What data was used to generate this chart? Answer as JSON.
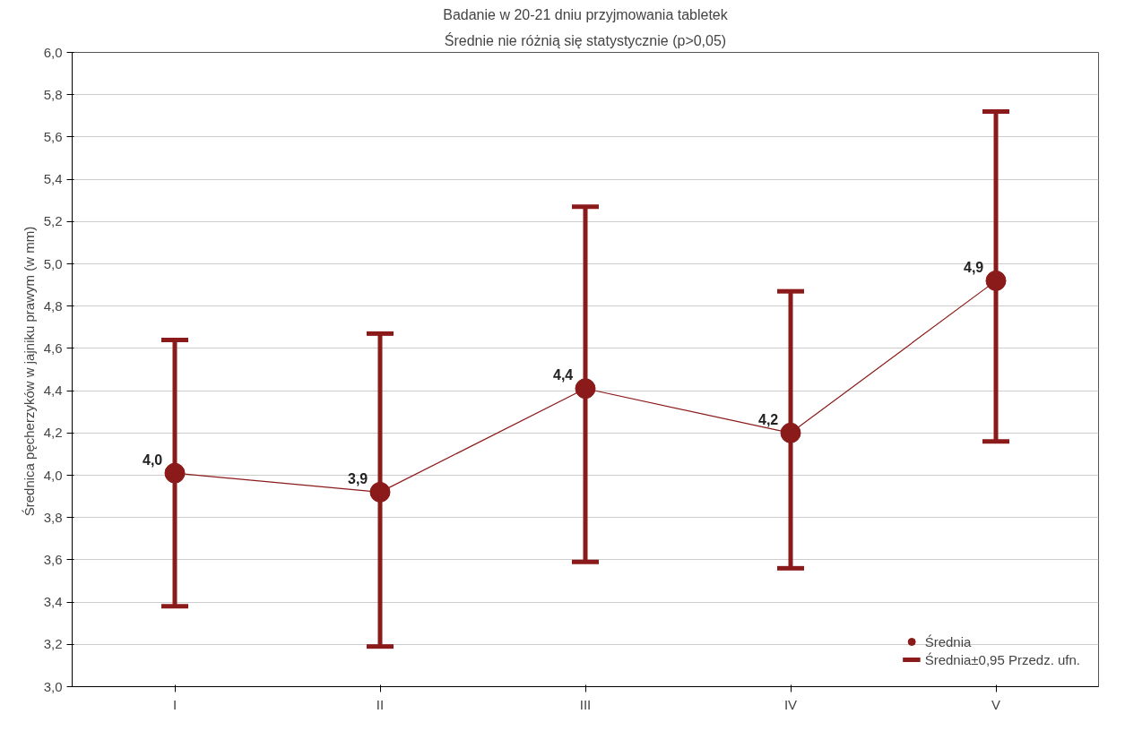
{
  "chart_data": {
    "type": "line",
    "title": "Badanie w 20-21 dniu przyjmowania tabletek",
    "subtitle": "Średnie nie różnią się statystycznie (p>0,05)",
    "ylabel": "Średnica  pęcherzyków w jajniku prawym (w mm)",
    "categories": [
      "I",
      "II",
      "III",
      "IV",
      "V"
    ],
    "series": [
      {
        "name": "Średnia",
        "color": "#8b1a1a",
        "values": [
          4.01,
          3.92,
          4.41,
          4.2,
          4.92
        ],
        "value_labels": [
          "4,0",
          "3,9",
          "4,4",
          "4,2",
          "4,9"
        ],
        "errors": [
          [
            3.38,
            4.64
          ],
          [
            3.19,
            4.67
          ],
          [
            3.59,
            5.27
          ],
          [
            3.56,
            4.87
          ],
          [
            4.16,
            5.72
          ]
        ]
      }
    ],
    "annotations": [
      "Średnia±0,95 Przedz. ufn."
    ],
    "ylim": [
      3.0,
      6.0
    ],
    "yticks": [
      {
        "value": 3.0,
        "label": "3,0"
      },
      {
        "value": 3.2,
        "label": "3,2"
      },
      {
        "value": 3.4,
        "label": "3,4"
      },
      {
        "value": 3.6,
        "label": "3,6"
      },
      {
        "value": 3.8,
        "label": "3,8"
      },
      {
        "value": 4.0,
        "label": "4,0"
      },
      {
        "value": 4.2,
        "label": "4,2"
      },
      {
        "value": 4.4,
        "label": "4,4"
      },
      {
        "value": 4.6,
        "label": "4,6"
      },
      {
        "value": 4.8,
        "label": "4,8"
      },
      {
        "value": 5.0,
        "label": "5,0"
      },
      {
        "value": 5.2,
        "label": "5,2"
      },
      {
        "value": 5.4,
        "label": "5,4"
      },
      {
        "value": 5.6,
        "label": "5,6"
      },
      {
        "value": 5.8,
        "label": "5,8"
      },
      {
        "value": 6.0,
        "label": "6,0"
      }
    ],
    "grid": "y",
    "legend": "bottom right",
    "marker": "circle",
    "line_style": "solid"
  }
}
